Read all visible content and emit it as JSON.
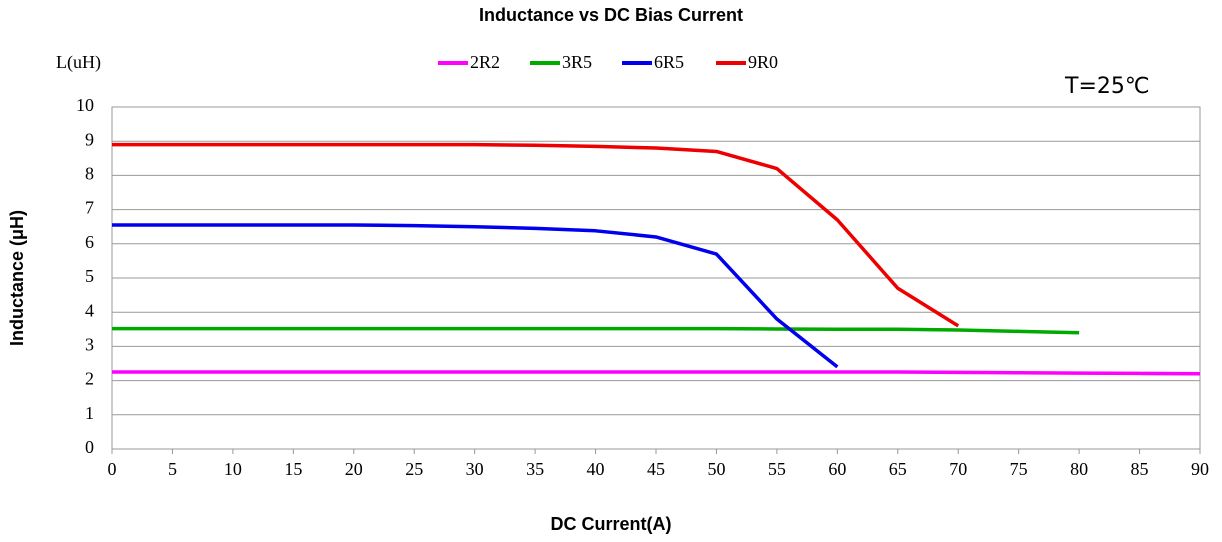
{
  "chart_data": {
    "type": "line",
    "title": "Inductance vs DC Bias Current",
    "xlabel": "DC Current(A)",
    "ylabel": "Inductance (μH)",
    "annotations": [
      "L(uH)",
      "T=25℃"
    ],
    "x": [
      0,
      5,
      10,
      15,
      20,
      25,
      30,
      35,
      40,
      45,
      50,
      55,
      60,
      65,
      70,
      75,
      80,
      85,
      90
    ],
    "series": [
      {
        "name": "2R2",
        "color": "#ff00ff",
        "values": [
          2.25,
          2.25,
          2.25,
          2.25,
          2.25,
          2.25,
          2.25,
          2.25,
          2.25,
          2.25,
          2.25,
          2.25,
          2.25,
          2.25,
          2.24,
          2.23,
          2.22,
          2.21,
          2.2
        ]
      },
      {
        "name": "3R5",
        "color": "#00aa00",
        "values": [
          3.52,
          3.52,
          3.52,
          3.52,
          3.52,
          3.52,
          3.52,
          3.52,
          3.52,
          3.52,
          3.52,
          3.51,
          3.5,
          3.5,
          3.48,
          3.44,
          3.4,
          null,
          null
        ]
      },
      {
        "name": "6R5",
        "color": "#0000ee",
        "values": [
          6.55,
          6.55,
          6.55,
          6.55,
          6.55,
          6.53,
          6.5,
          6.45,
          6.38,
          6.2,
          5.7,
          3.8,
          2.4,
          null,
          null,
          null,
          null,
          null,
          null
        ]
      },
      {
        "name": "9R0",
        "color": "#ee0000",
        "values": [
          8.9,
          8.9,
          8.9,
          8.9,
          8.9,
          8.9,
          8.9,
          8.88,
          8.85,
          8.8,
          8.7,
          8.2,
          6.7,
          4.7,
          3.6,
          null,
          null,
          null,
          null
        ]
      }
    ],
    "xlim": [
      0,
      90
    ],
    "xticks": [
      0,
      5,
      10,
      15,
      20,
      25,
      30,
      35,
      40,
      45,
      50,
      55,
      60,
      65,
      70,
      75,
      80,
      85,
      90
    ],
    "ylim": [
      0,
      10
    ],
    "yticks": [
      0,
      1,
      2,
      3,
      4,
      5,
      6,
      7,
      8,
      9,
      10
    ],
    "grid": true
  }
}
